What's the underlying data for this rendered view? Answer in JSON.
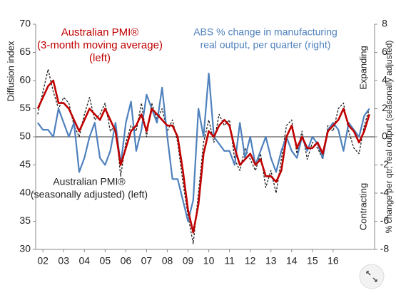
{
  "chart_data": {
    "type": "line",
    "y_label": "Diffusion index",
    "y2_label": "% change per qtr, real output (seasonally adjusted)",
    "annotations": [
      {
        "lines": [
          "Australian PMI®",
          "(3-month moving average)",
          "(left)"
        ],
        "color": "#c00000"
      },
      {
        "lines": [
          "ABS % change in manufacturing",
          "real output, per quarter (right)"
        ],
        "color": "#4f81bd"
      },
      {
        "lines": [
          "Australian PMI®",
          "(seasonally adjusted) (left)"
        ],
        "color": "#222222"
      },
      {
        "lines": [
          "Expanding"
        ],
        "color": "#222222"
      },
      {
        "lines": [
          "Contracting"
        ],
        "color": "#222222"
      }
    ],
    "x": [
      2001.75,
      2002,
      2002.25,
      2002.5,
      2002.75,
      2003,
      2003.25,
      2003.5,
      2003.75,
      2004,
      2004.25,
      2004.5,
      2004.75,
      2005,
      2005.25,
      2005.5,
      2005.75,
      2006,
      2006.25,
      2006.5,
      2006.75,
      2007,
      2007.25,
      2007.5,
      2007.75,
      2008,
      2008.25,
      2008.5,
      2008.75,
      2009,
      2009.25,
      2009.5,
      2009.75,
      2010,
      2010.25,
      2010.5,
      2010.75,
      2011,
      2011.25,
      2011.5,
      2011.75,
      2012,
      2012.25,
      2012.5,
      2012.75,
      2013,
      2013.25,
      2013.5,
      2013.75,
      2014,
      2014.25,
      2014.5,
      2014.75,
      2015,
      2015.25,
      2015.5,
      2015.75,
      2016,
      2016.25,
      2016.5,
      2016.75,
      2017,
      2017.25,
      2017.5,
      2017.75
    ],
    "series": [
      {
        "color": "#222222",
        "dashed": true,
        "axis": "y",
        "values": [
          54,
          58,
          62,
          58,
          55,
          57,
          56,
          52,
          50,
          54,
          57,
          53,
          54,
          56,
          51,
          52,
          43,
          49,
          52,
          51,
          56,
          50,
          56,
          53,
          55,
          51,
          53,
          49,
          42,
          36,
          31,
          40,
          49,
          53,
          49,
          54,
          52,
          53,
          46,
          44,
          48,
          46,
          44,
          47,
          41,
          44,
          40,
          46,
          52,
          53,
          47,
          51,
          46,
          49,
          48,
          46,
          52,
          51,
          55,
          56,
          51,
          48,
          47,
          52,
          55
        ]
      },
      {
        "color": "#4f81bd",
        "axis": "y2",
        "values": [
          1,
          0.5,
          0.5,
          0,
          2,
          1,
          0,
          1,
          -2.5,
          -1.5,
          0,
          1,
          -1.5,
          -2,
          -1,
          1,
          -2,
          1,
          2.5,
          -1,
          0.5,
          3,
          2,
          1,
          3.5,
          0,
          -3,
          -3,
          -4.5,
          -6,
          -4.5,
          2,
          0,
          4.5,
          0,
          -0.5,
          -1,
          -1,
          -2,
          1,
          -1.5,
          0,
          -2,
          -1,
          0,
          -1.5,
          -2.5,
          -1,
          0,
          -1,
          -1.5,
          0,
          -1,
          0,
          -0.5,
          -1.5,
          0.5,
          1,
          0.5,
          -1,
          1,
          0.5,
          0,
          1.5,
          2
        ]
      },
      {
        "color": "#c00000",
        "axis": "y",
        "values": [
          55,
          57,
          59,
          60,
          56,
          56,
          55,
          53,
          51,
          53,
          55,
          54,
          53,
          55,
          53,
          51,
          45,
          48,
          51,
          52,
          54,
          51,
          55,
          54,
          53,
          52,
          52,
          50,
          44,
          37,
          33,
          38,
          47,
          51,
          50,
          52,
          53,
          52,
          48,
          45,
          46,
          47,
          45,
          46,
          43,
          43,
          42,
          44,
          50,
          52,
          48,
          50,
          48,
          48,
          49,
          47,
          51,
          52,
          53,
          55,
          52,
          51,
          49,
          51,
          54
        ]
      }
    ],
    "xlim": [
      2001.65,
      2018.0
    ],
    "xticks": [
      {
        "value": 2002,
        "label": "02"
      },
      {
        "value": 2003,
        "label": "03"
      },
      {
        "value": 2004,
        "label": "04"
      },
      {
        "value": 2005,
        "label": "05"
      },
      {
        "value": 2006,
        "label": "06"
      },
      {
        "value": 2007,
        "label": "07"
      },
      {
        "value": 2008,
        "label": "08"
      },
      {
        "value": 2009,
        "label": "09"
      },
      {
        "value": 2010,
        "label": "10"
      },
      {
        "value": 2011,
        "label": "11"
      },
      {
        "value": 2012,
        "label": "12"
      },
      {
        "value": 2013,
        "label": "13"
      },
      {
        "value": 2014,
        "label": "14"
      },
      {
        "value": 2015,
        "label": "15"
      },
      {
        "value": 2016,
        "label": "16"
      }
    ],
    "ylim": [
      30,
      70
    ],
    "yticks": [
      30,
      35,
      40,
      45,
      50,
      55,
      60,
      65,
      70
    ],
    "y2lim": [
      -8,
      8
    ],
    "y2ticks": [
      -8,
      -6,
      -4,
      -2,
      0,
      2,
      4,
      6,
      8
    ],
    "reference_y": 50
  }
}
